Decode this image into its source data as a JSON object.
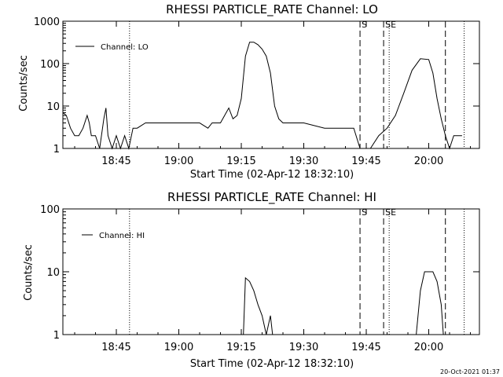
{
  "chart_data": [
    {
      "type": "line",
      "title": "RHESSI PARTICLE_RATE Channel: LO",
      "xlabel": "Start Time (02-Apr-12 18:32:10)",
      "ylabel": "Counts/sec",
      "yscale": "log",
      "ylim": [
        1,
        1000
      ],
      "xlim": [
        "18:32:10",
        "20:12:10"
      ],
      "xticks": [
        "18:45",
        "19:00",
        "19:15",
        "19:30",
        "19:45",
        "20:00"
      ],
      "yticks": [
        "1",
        "10",
        "100",
        "1000"
      ],
      "legend": "top-left",
      "grid": false,
      "series": [
        {
          "name": "Channel: LO",
          "points": [
            [
              "18:32:10",
              7
            ],
            [
              "18:33:00",
              6
            ],
            [
              "18:34:00",
              3
            ],
            [
              "18:35:00",
              2
            ],
            [
              "18:36:00",
              2
            ],
            [
              "18:37:00",
              3
            ],
            [
              "18:38:00",
              6
            ],
            [
              "18:38:30",
              4
            ],
            [
              "18:39:00",
              2
            ],
            [
              "18:40:00",
              2
            ],
            [
              "18:41:00",
              1
            ],
            [
              "18:42:00",
              5
            ],
            [
              "18:42:30",
              9
            ],
            [
              "18:43:00",
              2
            ],
            [
              "18:44:00",
              1
            ],
            [
              "18:45:00",
              2
            ],
            [
              "18:46:00",
              1
            ],
            [
              "18:47:00",
              2
            ],
            [
              "18:48:00",
              1
            ],
            [
              "18:49:00",
              3
            ],
            [
              "18:50:00",
              3
            ],
            [
              "18:52:00",
              4
            ],
            [
              "19:00:00",
              4
            ],
            [
              "19:05:00",
              4
            ],
            [
              "19:07:00",
              3
            ],
            [
              "19:08:00",
              4
            ],
            [
              "19:10:00",
              4
            ],
            [
              "19:11:00",
              6
            ],
            [
              "19:12:00",
              9
            ],
            [
              "19:13:00",
              5
            ],
            [
              "19:14:00",
              6
            ],
            [
              "19:15:00",
              15
            ],
            [
              "19:16:00",
              150
            ],
            [
              "19:17:00",
              320
            ],
            [
              "19:18:00",
              320
            ],
            [
              "19:19:00",
              280
            ],
            [
              "19:20:00",
              220
            ],
            [
              "19:21:00",
              150
            ],
            [
              "19:22:00",
              60
            ],
            [
              "19:23:00",
              10
            ],
            [
              "19:24:00",
              5
            ],
            [
              "19:25:00",
              4
            ],
            [
              "19:30:00",
              4
            ],
            [
              "19:35:00",
              3
            ],
            [
              "19:40:00",
              3
            ],
            [
              "19:42:00",
              3
            ],
            [
              "19:43:30",
              1
            ],
            [
              "19:46:00",
              1
            ],
            [
              "19:48:00",
              2
            ],
            [
              "19:50:00",
              3
            ],
            [
              "19:52:00",
              6
            ],
            [
              "19:54:00",
              20
            ],
            [
              "19:56:00",
              70
            ],
            [
              "19:58:00",
              130
            ],
            [
              "20:00:00",
              125
            ],
            [
              "20:01:00",
              60
            ],
            [
              "20:02:00",
              15
            ],
            [
              "20:03:00",
              5
            ],
            [
              "20:04:00",
              2
            ],
            [
              "20:05:00",
              1
            ],
            [
              "20:06:00",
              2
            ],
            [
              "20:08:00",
              2
            ]
          ]
        }
      ],
      "markers": {
        "S_label": "S",
        "SE_label": "SE",
        "dashed": [
          "19:43:30",
          "19:49:10",
          "20:04:00"
        ],
        "dotted": [
          "18:48:10",
          "19:50:30",
          "20:08:30"
        ]
      }
    },
    {
      "type": "line",
      "title": "RHESSI PARTICLE_RATE Channel: HI",
      "xlabel": "Start Time (02-Apr-12 18:32:10)",
      "ylabel": "Counts/sec",
      "yscale": "log",
      "ylim": [
        1,
        100
      ],
      "xlim": [
        "18:32:10",
        "20:12:10"
      ],
      "xticks": [
        "18:45",
        "19:00",
        "19:15",
        "19:30",
        "19:45",
        "20:00"
      ],
      "yticks": [
        "1",
        "10",
        "100"
      ],
      "legend": "top-left",
      "grid": false,
      "series": [
        {
          "name": "Channel: HI",
          "points": [
            [
              "19:15:30",
              1
            ],
            [
              "19:16:00",
              8
            ],
            [
              "19:17:00",
              7
            ],
            [
              "19:18:00",
              5
            ],
            [
              "19:19:00",
              3
            ],
            [
              "19:20:00",
              2
            ],
            [
              "19:21:00",
              1
            ],
            [
              "19:22:00",
              2
            ],
            [
              "19:22:30",
              1
            ],
            [
              "19:57:00",
              1
            ],
            [
              "19:58:00",
              5
            ],
            [
              "19:59:00",
              10
            ],
            [
              "20:01:00",
              10
            ],
            [
              "20:02:00",
              7
            ],
            [
              "20:03:00",
              3
            ],
            [
              "20:03:30",
              1
            ]
          ]
        }
      ],
      "markers": {
        "S_label": "S",
        "SE_label": "SE",
        "dashed": [
          "19:43:30",
          "19:49:10",
          "20:04:00"
        ],
        "dotted": [
          "18:48:10",
          "19:50:30",
          "20:08:30"
        ]
      }
    }
  ],
  "footer": {
    "timestamp": "20-Oct-2021 01:37"
  }
}
